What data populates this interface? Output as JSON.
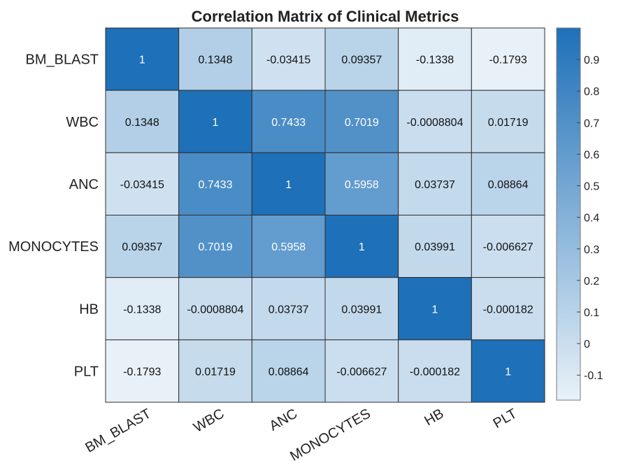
{
  "chart_data": {
    "type": "heatmap",
    "title": "Correlation Matrix of Clinical Metrics",
    "row_labels": [
      "BM_BLAST",
      "WBC",
      "ANC",
      "MONOCYTES",
      "HB",
      "PLT"
    ],
    "col_labels": [
      "BM_BLAST",
      "WBC",
      "ANC",
      "MONOCYTES",
      "HB",
      "PLT"
    ],
    "values": [
      [
        1,
        0.1348,
        -0.03415,
        0.09357,
        -0.1338,
        -0.1793
      ],
      [
        0.1348,
        1,
        0.7433,
        0.7019,
        -0.0008804,
        0.01719
      ],
      [
        -0.03415,
        0.7433,
        1,
        0.5958,
        0.03737,
        0.08864
      ],
      [
        0.09357,
        0.7019,
        0.5958,
        1,
        0.03991,
        -0.006627
      ],
      [
        -0.1338,
        -0.0008804,
        0.03737,
        0.03991,
        1,
        -0.000182
      ],
      [
        -0.1793,
        0.01719,
        0.08864,
        -0.006627,
        -0.000182,
        1
      ]
    ],
    "cell_labels": [
      [
        "1",
        "0.1348",
        "-0.03415",
        "0.09357",
        "-0.1338",
        "-0.1793"
      ],
      [
        "0.1348",
        "1",
        "0.7433",
        "0.7019",
        "-0.0008804",
        "0.01719"
      ],
      [
        "-0.03415",
        "0.7433",
        "1",
        "0.5958",
        "0.03737",
        "0.08864"
      ],
      [
        "0.09357",
        "0.7019",
        "0.5958",
        "1",
        "0.03991",
        "-0.006627"
      ],
      [
        "-0.1338",
        "-0.0008804",
        "0.03737",
        "0.03991",
        "1",
        "-0.000182"
      ],
      [
        "-0.1793",
        "0.01719",
        "0.08864",
        "-0.006627",
        "-0.000182",
        "1"
      ]
    ],
    "colorbar": {
      "vmin": -0.1793,
      "vmax": 1,
      "ticks": [
        -0.1,
        0,
        0.1,
        0.2,
        0.3,
        0.4,
        0.5,
        0.6,
        0.7,
        0.8,
        0.9
      ],
      "tick_labels": [
        "-0.1",
        "0",
        "0.1",
        "0.2",
        "0.3",
        "0.4",
        "0.5",
        "0.6",
        "0.7",
        "0.8",
        "0.9"
      ],
      "color_low": "#e8f1f8",
      "color_high": "#1e70b8"
    },
    "grid_color": "#2e2e2e",
    "light_text_color": "#ffffff",
    "dark_text_color": "#111111"
  }
}
